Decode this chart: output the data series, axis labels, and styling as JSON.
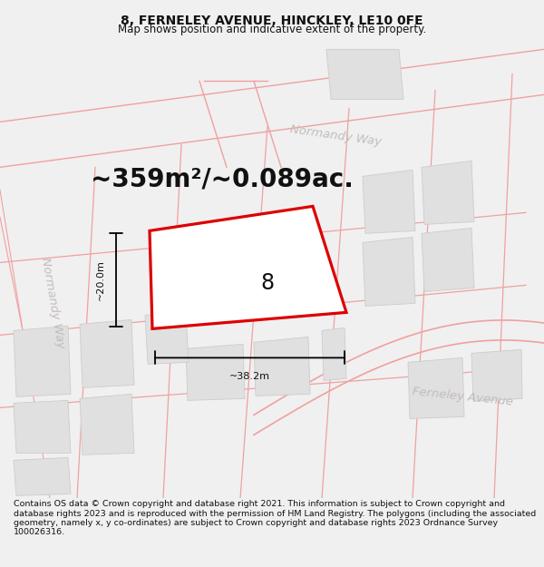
{
  "title": "8, FERNELEY AVENUE, HINCKLEY, LE10 0FE",
  "subtitle": "Map shows position and indicative extent of the property.",
  "area_text": "~359m²/~0.089ac.",
  "dim_width": "~38.2m",
  "dim_height": "~20.0m",
  "property_label": "8",
  "footer": "Contains OS data © Crown copyright and database right 2021. This information is subject to Crown copyright and database rights 2023 and is reproduced with the permission of HM Land Registry. The polygons (including the associated geometry, namely x, y co-ordinates) are subject to Crown copyright and database rights 2023 Ordnance Survey 100026316.",
  "bg_color": "#f0f0f0",
  "map_bg": "#ffffff",
  "road_color": "#f0a0a0",
  "road_edge_color": "#e88888",
  "building_color": "#e0e0e0",
  "building_edge_color": "#cccccc",
  "property_color": "#dd0000",
  "street_label_color": "#c0b8b8",
  "title_fontsize": 10,
  "subtitle_fontsize": 8.5,
  "area_fontsize": 20,
  "footer_fontsize": 6.8,
  "road_lw": 1.0,
  "prop_lw": 2.5
}
